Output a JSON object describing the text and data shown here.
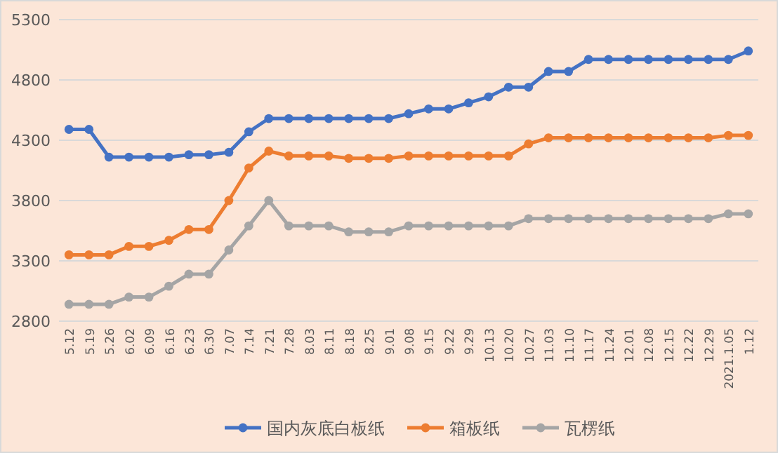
{
  "chart_data": {
    "type": "line",
    "categories": [
      "5.12",
      "5.19",
      "5.26",
      "6.02",
      "6.09",
      "6.16",
      "6.23",
      "6.30",
      "7.07",
      "7.14",
      "7.21",
      "7.28",
      "8.03",
      "8.11",
      "8.18",
      "8.25",
      "9.01",
      "9.08",
      "9.15",
      "9.22",
      "9.29",
      "10.13",
      "10.20",
      "10.27",
      "11.03",
      "11.10",
      "11.17",
      "11.24",
      "12.01",
      "12.08",
      "12.15",
      "12.22",
      "12.29",
      "2021.1.05",
      "1.12"
    ],
    "series": [
      {
        "name": "国内灰底白板纸",
        "color": "#4472c4",
        "values": [
          4390,
          4390,
          4160,
          4160,
          4160,
          4160,
          4180,
          4180,
          4200,
          4370,
          4480,
          4480,
          4480,
          4480,
          4480,
          4480,
          4480,
          4520,
          4560,
          4560,
          4610,
          4660,
          4740,
          4740,
          4870,
          4870,
          4970,
          4970,
          4970,
          4970,
          4970,
          4970,
          4970,
          4970,
          5040
        ]
      },
      {
        "name": "箱板纸",
        "color": "#ed7d31",
        "values": [
          3350,
          3350,
          3350,
          3420,
          3420,
          3470,
          3560,
          3560,
          3800,
          4070,
          4210,
          4170,
          4170,
          4170,
          4150,
          4150,
          4150,
          4170,
          4170,
          4170,
          4170,
          4170,
          4170,
          4270,
          4320,
          4320,
          4320,
          4320,
          4320,
          4320,
          4320,
          4320,
          4320,
          4340,
          4340
        ]
      },
      {
        "name": "瓦楞纸",
        "color": "#a5a5a5",
        "values": [
          2940,
          2940,
          2940,
          3000,
          3000,
          3090,
          3190,
          3190,
          3390,
          3590,
          3800,
          3590,
          3590,
          3590,
          3540,
          3540,
          3540,
          3590,
          3590,
          3590,
          3590,
          3590,
          3590,
          3650,
          3650,
          3650,
          3650,
          3650,
          3650,
          3650,
          3650,
          3650,
          3650,
          3690,
          3690
        ]
      }
    ],
    "ylim": [
      2800,
      5300
    ],
    "yticks": [
      2800,
      3300,
      3800,
      4300,
      4800,
      5300
    ],
    "grid": "y",
    "legend": "bottom",
    "marker": "circle"
  }
}
